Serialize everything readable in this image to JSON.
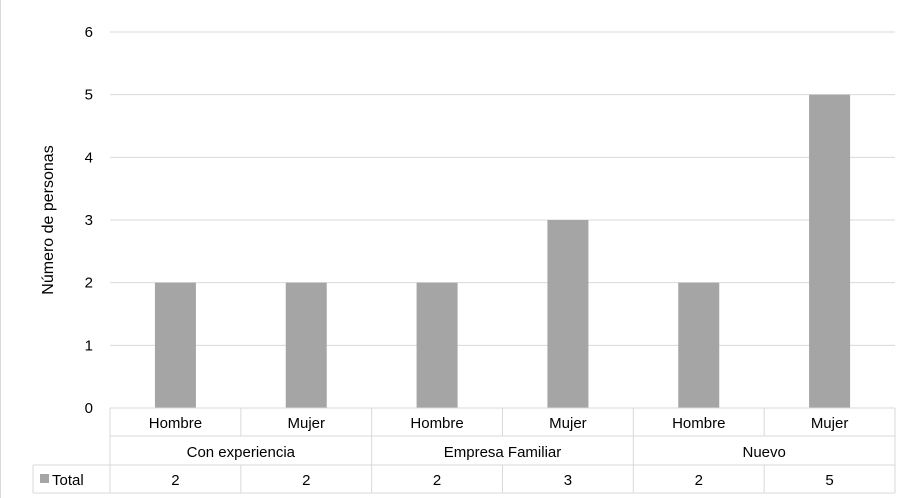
{
  "chart_data": {
    "type": "bar",
    "title": "",
    "ylabel": "Número de personas",
    "xlabel": "",
    "ylim": [
      0,
      6
    ],
    "y_ticks": [
      "0",
      "1",
      "2",
      "3",
      "4",
      "5",
      "6"
    ],
    "categories": [
      "Hombre",
      "Mujer",
      "Hombre",
      "Mujer",
      "Hombre",
      "Mujer"
    ],
    "groups": [
      {
        "label": "Con experiencia",
        "span": 2
      },
      {
        "label": "Empresa Familiar",
        "span": 2
      },
      {
        "label": "Nuevo",
        "span": 2
      }
    ],
    "series": [
      {
        "name": "Total",
        "values": [
          2,
          2,
          2,
          3,
          2,
          5
        ],
        "color": "#a5a5a5"
      }
    ],
    "value_labels": [
      "2",
      "2",
      "2",
      "3",
      "2",
      "5"
    ],
    "grid": true,
    "legend": "data-table-left",
    "colors": {
      "bar": "#a5a5a5",
      "grid": "#d9d9d9",
      "table_border": "#d9d9d9"
    }
  }
}
